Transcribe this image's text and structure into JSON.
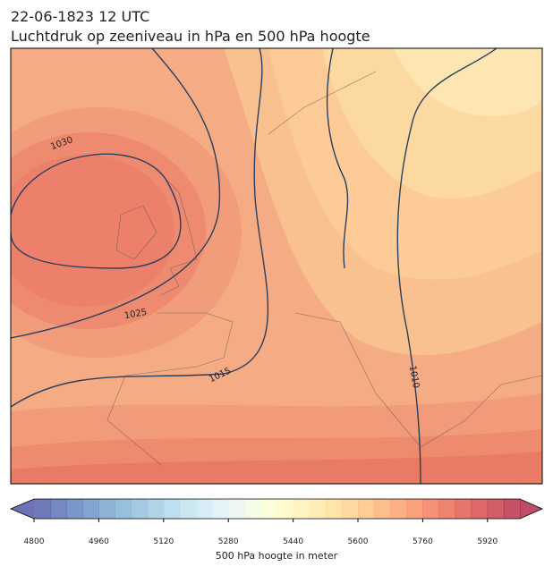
{
  "title_line1": "22-06-1823 12 UTC",
  "title_line2": "Luchtdruk op zeeniveau in hPa en 500 hPa hoogte",
  "contour_labels": [
    "1030",
    "1025",
    "1015",
    "1010"
  ],
  "colorbar": {
    "vmin": 4800,
    "vmax": 6000,
    "bins": 30,
    "ticks": [
      4800,
      4960,
      5120,
      5280,
      5440,
      5600,
      5760,
      5920
    ],
    "label": "500 hPa hoogte in meter",
    "colormap": [
      "#313695",
      "#4575b4",
      "#74add1",
      "#abd9e9",
      "#e0f3f8",
      "#ffffbf",
      "#fee090",
      "#fdae61",
      "#f46d43",
      "#d73027",
      "#a50026"
    ]
  }
}
